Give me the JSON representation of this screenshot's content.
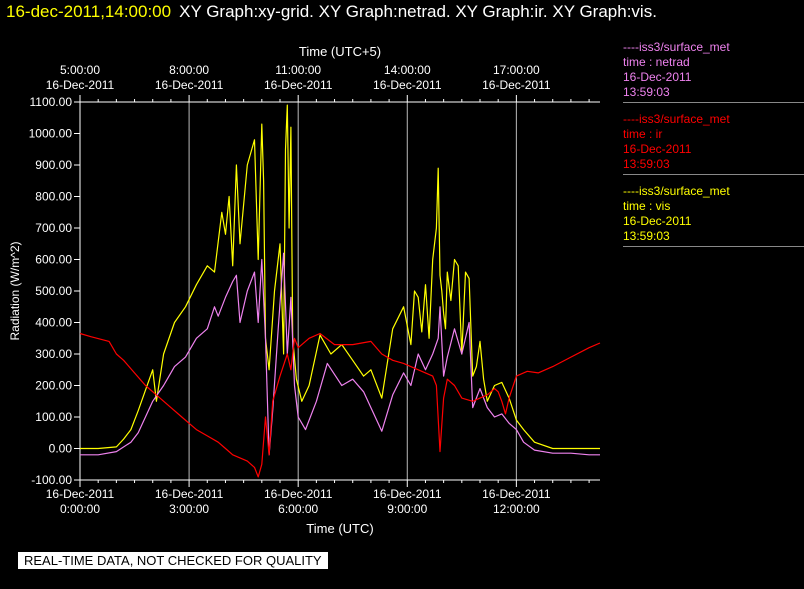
{
  "header": {
    "timestamp": "16-dec-2011,14:00:00",
    "graphs": "XY Graph:xy-grid.  XY Graph:netrad.  XY Graph:ir.  XY Graph:vis."
  },
  "banner": "REAL-TIME DATA, NOT CHECKED FOR QUALITY",
  "legend": [
    {
      "source": "----iss3/surface_met",
      "series": "time : netrad",
      "date": "16-Dec-2011",
      "time": "13:59:03",
      "color": "#ee82ee"
    },
    {
      "source": "----iss3/surface_met",
      "series": "time : ir",
      "date": "16-Dec-2011",
      "time": "13:59:03",
      "color": "#ff0000"
    },
    {
      "source": "----iss3/surface_met",
      "series": "time : vis",
      "date": "16-Dec-2011",
      "time": "13:59:03",
      "color": "#ffff00"
    }
  ],
  "chart_data": {
    "type": "line",
    "ylabel": "Radiation (W/m^2)",
    "xlabel_bottom": "Time (UTC)",
    "xlabel_top": "Time (UTC+5)",
    "ylim": [
      -100,
      1100
    ],
    "xlim": [
      0,
      14.3
    ],
    "grid": "vertical",
    "yticks": [
      "-100.00",
      "0.00",
      "100.00",
      "200.00",
      "300.00",
      "400.00",
      "500.00",
      "600.00",
      "700.00",
      "800.00",
      "900.00",
      "1000.00",
      "1100.00"
    ],
    "bottom_ticks": [
      {
        "x": 0,
        "date": "16-Dec-2011",
        "time": "0:00:00"
      },
      {
        "x": 3,
        "date": "16-Dec-2011",
        "time": "3:00:00"
      },
      {
        "x": 6,
        "date": "16-Dec-2011",
        "time": "6:00:00"
      },
      {
        "x": 9,
        "date": "16-Dec-2011",
        "time": "9:00:00"
      },
      {
        "x": 12,
        "date": "16-Dec-2011",
        "time": "12:00:00"
      }
    ],
    "top_ticks": [
      {
        "x": 0,
        "time": "5:00:00",
        "date": "16-Dec-2011"
      },
      {
        "x": 3,
        "time": "8:00:00",
        "date": "16-Dec-2011"
      },
      {
        "x": 6,
        "time": "11:00:00",
        "date": "16-Dec-2011"
      },
      {
        "x": 9,
        "time": "14:00:00",
        "date": "16-Dec-2011"
      },
      {
        "x": 12,
        "time": "17:00:00",
        "date": "16-Dec-2011"
      }
    ],
    "series": [
      {
        "key": "vis",
        "color": "#ffff00",
        "x": [
          0,
          0.5,
          1,
          1.2,
          1.4,
          1.6,
          2.0,
          2.1,
          2.3,
          2.6,
          2.9,
          3.2,
          3.5,
          3.7,
          3.9,
          4.0,
          4.1,
          4.2,
          4.3,
          4.4,
          4.6,
          4.8,
          4.9,
          5.0,
          5.05,
          5.1,
          5.2,
          5.35,
          5.5,
          5.6,
          5.65,
          5.7,
          5.75,
          5.8,
          5.85,
          5.95,
          6.1,
          6.3,
          6.6,
          6.9,
          7.2,
          7.5,
          7.8,
          8.0,
          8.3,
          8.6,
          8.9,
          9.1,
          9.2,
          9.3,
          9.4,
          9.5,
          9.6,
          9.7,
          9.8,
          9.85,
          9.9,
          9.95,
          10.0,
          10.05,
          10.1,
          10.2,
          10.3,
          10.4,
          10.5,
          10.6,
          10.7,
          10.8,
          10.9,
          11.0,
          11.1,
          11.2,
          11.4,
          11.6,
          11.8,
          12.0,
          12.2,
          12.5,
          13.0,
          13.5,
          14.0,
          14.3
        ],
        "y": [
          0,
          0,
          5,
          30,
          60,
          120,
          250,
          150,
          300,
          400,
          450,
          520,
          580,
          560,
          750,
          680,
          800,
          580,
          900,
          650,
          900,
          980,
          600,
          1030,
          850,
          350,
          250,
          500,
          650,
          300,
          950,
          1090,
          700,
          1020,
          350,
          220,
          150,
          200,
          360,
          300,
          330,
          280,
          230,
          250,
          160,
          380,
          450,
          330,
          500,
          480,
          370,
          520,
          350,
          600,
          700,
          890,
          550,
          500,
          430,
          380,
          560,
          470,
          600,
          580,
          300,
          560,
          540,
          230,
          260,
          340,
          220,
          150,
          200,
          210,
          160,
          90,
          60,
          20,
          0,
          0,
          0,
          0
        ]
      },
      {
        "key": "netrad",
        "color": "#ee82ee",
        "x": [
          0,
          0.5,
          1,
          1.4,
          1.6,
          2.0,
          2.3,
          2.6,
          2.9,
          3.2,
          3.5,
          3.7,
          3.8,
          4.0,
          4.2,
          4.3,
          4.4,
          4.6,
          4.8,
          4.9,
          5.0,
          5.1,
          5.2,
          5.3,
          5.45,
          5.6,
          5.7,
          5.8,
          5.9,
          6.0,
          6.2,
          6.5,
          6.8,
          7.2,
          7.5,
          7.8,
          8.0,
          8.3,
          8.6,
          8.9,
          9.1,
          9.3,
          9.5,
          9.7,
          9.85,
          9.9,
          10.0,
          10.1,
          10.3,
          10.5,
          10.7,
          10.8,
          11.0,
          11.2,
          11.4,
          11.6,
          11.8,
          12.0,
          12.2,
          12.5,
          13.0,
          13.5,
          14.0,
          14.3
        ],
        "y": [
          -20,
          -20,
          -10,
          20,
          50,
          150,
          200,
          260,
          290,
          350,
          380,
          450,
          420,
          480,
          530,
          550,
          400,
          500,
          560,
          400,
          600,
          350,
          -20,
          120,
          380,
          620,
          300,
          480,
          200,
          100,
          60,
          150,
          270,
          200,
          220,
          180,
          130,
          55,
          170,
          240,
          200,
          300,
          250,
          300,
          350,
          450,
          230,
          290,
          380,
          300,
          400,
          130,
          190,
          130,
          100,
          110,
          80,
          60,
          20,
          -5,
          -15,
          -15,
          -20,
          -20
        ]
      },
      {
        "key": "ir",
        "color": "#ff0000",
        "x": [
          0,
          0.3,
          0.8,
          1.0,
          1.2,
          1.5,
          1.8,
          2.1,
          2.5,
          2.8,
          3.0,
          3.2,
          3.5,
          3.8,
          4.0,
          4.2,
          4.4,
          4.6,
          4.8,
          4.9,
          5.0,
          5.1,
          5.2,
          5.3,
          5.5,
          5.7,
          5.8,
          5.9,
          6.0,
          6.3,
          6.6,
          7.0,
          7.5,
          8.0,
          8.3,
          8.6,
          8.9,
          9.2,
          9.5,
          9.7,
          9.8,
          9.9,
          10.0,
          10.1,
          10.3,
          10.5,
          10.8,
          11.0,
          11.2,
          11.4,
          11.5,
          11.6,
          11.7,
          11.8,
          12.0,
          12.3,
          12.6,
          13.0,
          13.5,
          14.0,
          14.3
        ],
        "y": [
          365,
          355,
          340,
          300,
          280,
          240,
          200,
          170,
          130,
          100,
          80,
          60,
          40,
          20,
          0,
          -20,
          -30,
          -40,
          -60,
          -90,
          -50,
          100,
          -20,
          150,
          230,
          300,
          250,
          350,
          320,
          350,
          365,
          330,
          330,
          340,
          300,
          280,
          270,
          255,
          240,
          230,
          200,
          -10,
          160,
          220,
          200,
          160,
          150,
          160,
          170,
          190,
          180,
          150,
          110,
          160,
          230,
          245,
          240,
          260,
          290,
          320,
          335
        ]
      }
    ]
  }
}
